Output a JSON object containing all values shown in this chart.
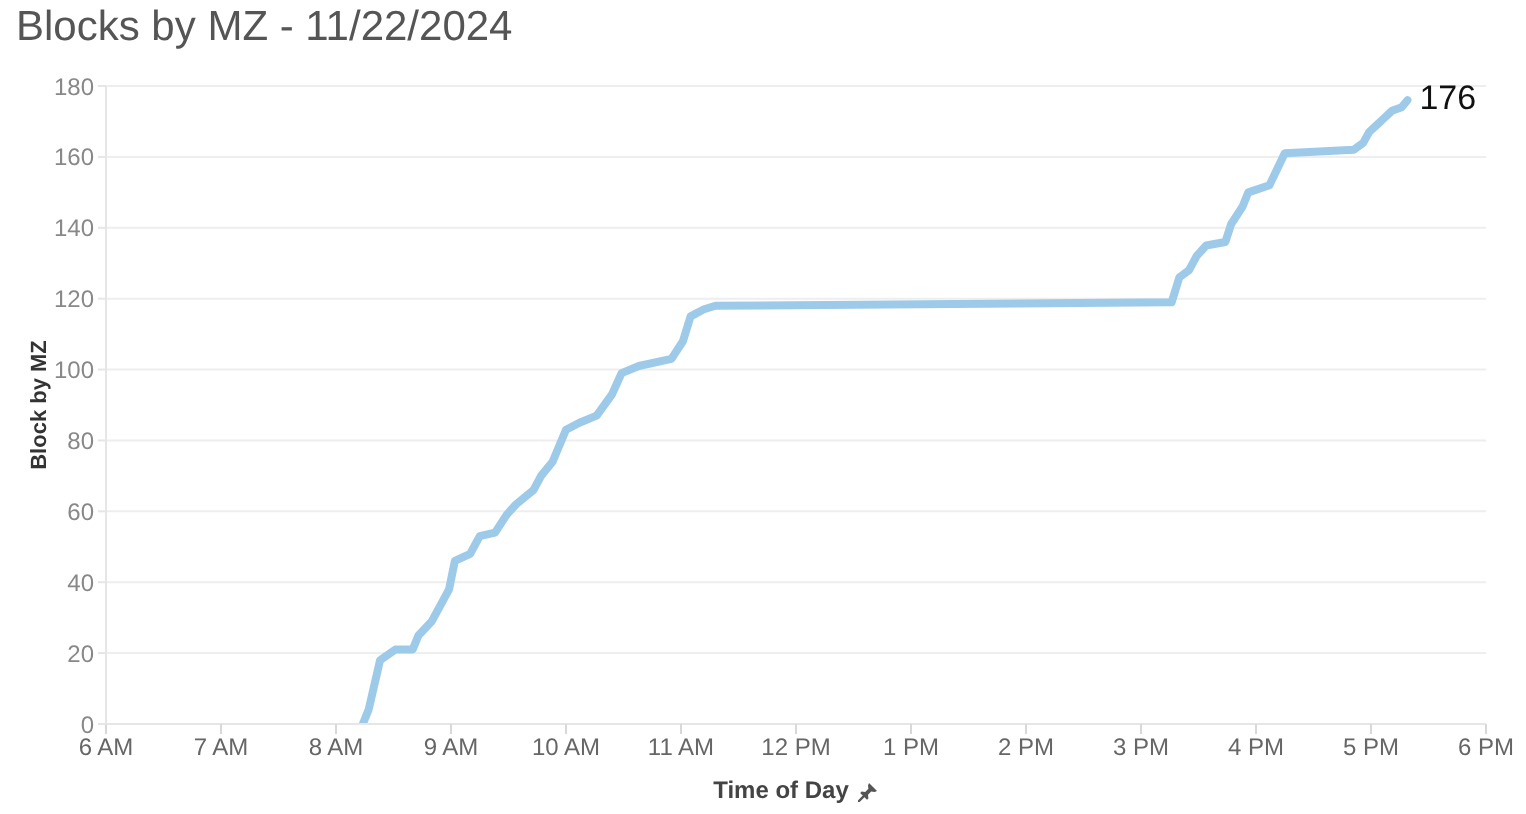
{
  "chart_data": {
    "type": "line",
    "title": "Blocks by MZ - 11/22/2024",
    "xlabel": "Time of Day",
    "ylabel": "Block by MZ",
    "x": [
      "2024-11-22T08:14",
      "2024-11-22T08:17",
      "2024-11-22T08:23",
      "2024-11-22T08:31",
      "2024-11-22T08:40",
      "2024-11-22T08:43",
      "2024-11-22T08:50",
      "2024-11-22T08:59",
      "2024-11-22T09:02",
      "2024-11-22T09:10",
      "2024-11-22T09:15",
      "2024-11-22T09:23",
      "2024-11-22T09:29",
      "2024-11-22T09:34",
      "2024-11-22T09:43",
      "2024-11-22T09:47",
      "2024-11-22T09:53",
      "2024-11-22T10:00",
      "2024-11-22T10:07",
      "2024-11-22T10:16",
      "2024-11-22T10:24",
      "2024-11-22T10:29",
      "2024-11-22T10:38",
      "2024-11-22T10:55",
      "2024-11-22T11:01",
      "2024-11-22T11:05",
      "2024-11-22T11:12",
      "2024-11-22T11:18",
      "2024-11-22T15:16",
      "2024-11-22T15:20",
      "2024-11-22T15:25",
      "2024-11-22T15:29",
      "2024-11-22T15:34",
      "2024-11-22T15:44",
      "2024-11-22T15:47",
      "2024-11-22T15:53",
      "2024-11-22T15:56",
      "2024-11-22T16:07",
      "2024-11-22T16:15",
      "2024-11-22T16:51",
      "2024-11-22T16:56",
      "2024-11-22T16:59",
      "2024-11-22T17:03",
      "2024-11-22T17:07",
      "2024-11-22T17:11",
      "2024-11-22T17:16",
      "2024-11-22T17:19"
    ],
    "values": [
      0,
      4,
      18,
      21,
      21,
      25,
      29,
      38,
      46,
      48,
      53,
      54,
      59,
      62,
      66,
      70,
      74,
      83,
      85,
      87,
      93,
      99,
      101,
      103,
      108,
      115,
      117,
      118,
      119,
      126,
      128,
      132,
      135,
      136,
      141,
      146,
      150,
      152,
      161,
      162,
      164,
      167,
      169,
      171,
      173,
      174,
      176
    ],
    "value_labels": [
      null,
      null,
      null,
      null,
      null,
      null,
      null,
      null,
      null,
      null,
      null,
      null,
      null,
      null,
      null,
      null,
      null,
      null,
      null,
      null,
      null,
      null,
      null,
      null,
      null,
      null,
      null,
      null,
      null,
      null,
      null,
      null,
      null,
      null,
      null,
      null,
      null,
      null,
      null,
      null,
      null,
      null,
      null,
      null,
      null,
      null,
      "176"
    ],
    "color": "#9ecae9",
    "xlim": [
      "2024-11-22T06:00",
      "2024-11-22T18:00"
    ],
    "xticks": [
      {
        "value": "2024-11-22T06:00",
        "label": "6 AM"
      },
      {
        "value": "2024-11-22T07:00",
        "label": "7 AM"
      },
      {
        "value": "2024-11-22T08:00",
        "label": "8 AM"
      },
      {
        "value": "2024-11-22T09:00",
        "label": "9 AM"
      },
      {
        "value": "2024-11-22T10:00",
        "label": "10 AM"
      },
      {
        "value": "2024-11-22T11:00",
        "label": "11 AM"
      },
      {
        "value": "2024-11-22T12:00",
        "label": "12 PM"
      },
      {
        "value": "2024-11-22T13:00",
        "label": "1 PM"
      },
      {
        "value": "2024-11-22T14:00",
        "label": "2 PM"
      },
      {
        "value": "2024-11-22T15:00",
        "label": "3 PM"
      },
      {
        "value": "2024-11-22T16:00",
        "label": "4 PM"
      },
      {
        "value": "2024-11-22T17:00",
        "label": "5 PM"
      },
      {
        "value": "2024-11-22T18:00",
        "label": "6 PM"
      }
    ],
    "ylim": [
      0,
      180
    ],
    "yticks": [
      0,
      20,
      40,
      60,
      80,
      100,
      120,
      140,
      160,
      180
    ],
    "grid": "y"
  }
}
